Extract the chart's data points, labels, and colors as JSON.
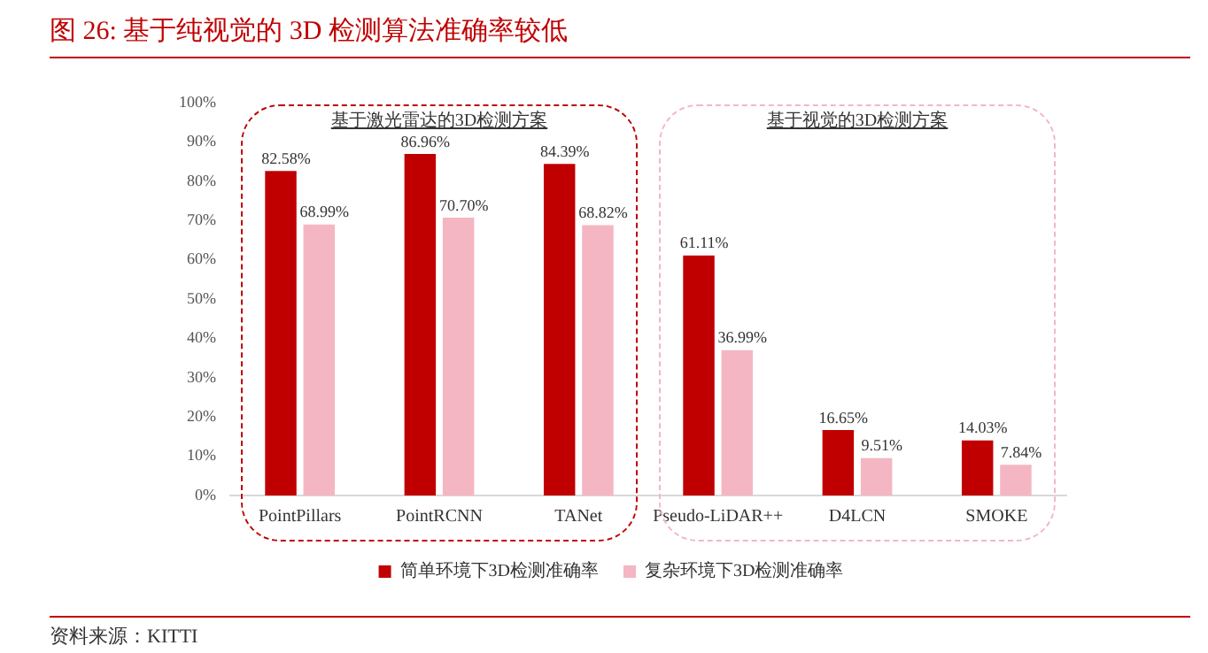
{
  "chart_data": {
    "type": "bar",
    "title": "图 26:   基于纯视觉的 3D 检测算法准确率较低",
    "categories": [
      "PointPillars",
      "PointRCNN",
      "TANet",
      "Pseudo-LiDAR++",
      "D4LCN",
      "SMOKE"
    ],
    "series": [
      {
        "name": "简单环境下3D检测准确率",
        "color": "#c00000",
        "values": [
          82.58,
          86.96,
          84.39,
          61.11,
          16.65,
          14.03
        ],
        "value_labels": [
          "82.58%",
          "86.96%",
          "84.39%",
          "61.11%",
          "16.65%",
          "14.03%"
        ]
      },
      {
        "name": "复杂环境下3D检测准确率",
        "color": "#f4b6c2",
        "values": [
          68.99,
          70.7,
          68.82,
          36.99,
          9.51,
          7.84
        ],
        "value_labels": [
          "68.99%",
          "70.70%",
          "68.82%",
          "36.99%",
          "9.51%",
          "7.84%"
        ]
      }
    ],
    "ylim": [
      0,
      100
    ],
    "yticks": [
      {
        "value": 0,
        "label": "0%"
      },
      {
        "value": 10,
        "label": "10%"
      },
      {
        "value": 20,
        "label": "20%"
      },
      {
        "value": 30,
        "label": "30%"
      },
      {
        "value": 40,
        "label": "40%"
      },
      {
        "value": 50,
        "label": "50%"
      },
      {
        "value": 60,
        "label": "60%"
      },
      {
        "value": 70,
        "label": "70%"
      },
      {
        "value": 80,
        "label": "80%"
      },
      {
        "value": 90,
        "label": "90%"
      },
      {
        "value": 100,
        "label": "100%"
      }
    ],
    "annotations": [
      "基于激光雷达的3D检测方案",
      "基于视觉的3D检测方案",
      "资料来源：KITTI"
    ],
    "grid": false,
    "legend": "bottom"
  }
}
